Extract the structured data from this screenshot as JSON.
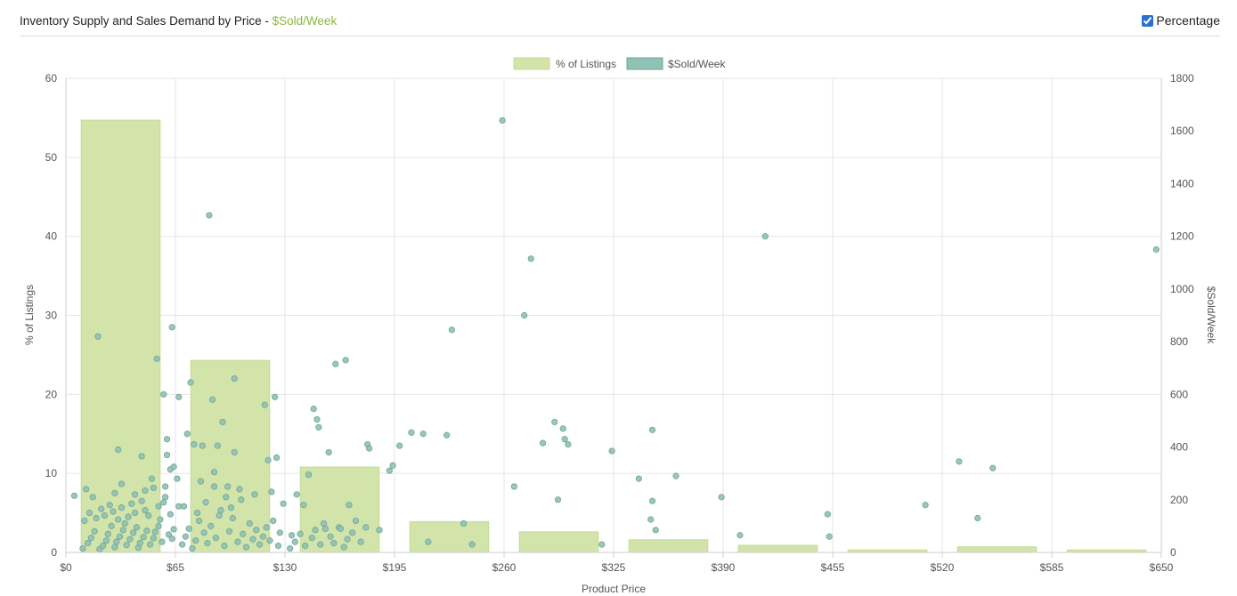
{
  "header": {
    "title": "Inventory Supply and Sales Demand by Price - ",
    "title_accent": "$Sold/Week",
    "toggle_label": "Percentage",
    "toggle_checked": true
  },
  "colors": {
    "bar_fill": "#d2e4aa",
    "bar_stroke": "#c4db92",
    "point_fill": "#8fc1b5",
    "point_stroke": "#6fa496",
    "accent": "#8cb83c"
  },
  "chart_data": {
    "type": "bar+scatter",
    "xlabel": "Product Price",
    "ylabel_left": "% of Listings",
    "ylabel_right": "$Sold/Week",
    "xlim": [
      0,
      650
    ],
    "ylim_left": [
      0,
      60
    ],
    "ylim_right": [
      0,
      1800
    ],
    "x_ticks": [
      "$0",
      "$65",
      "$130",
      "$195",
      "$260",
      "$325",
      "$390",
      "$455",
      "$520",
      "$585",
      "$650"
    ],
    "y_ticks_left": [
      "0",
      "10",
      "20",
      "30",
      "40",
      "50",
      "60"
    ],
    "y_ticks_right": [
      "0",
      "200",
      "400",
      "600",
      "800",
      "1000",
      "1200",
      "1400",
      "1600",
      "1800"
    ],
    "grid": true,
    "legend": {
      "placement": "top-center",
      "entries": [
        "% of Listings",
        "$Sold/Week"
      ]
    },
    "bars": {
      "name": "% of Listings",
      "bins": [
        [
          0,
          65
        ],
        [
          65,
          130
        ],
        [
          130,
          195
        ],
        [
          195,
          260
        ],
        [
          260,
          325
        ],
        [
          325,
          390
        ],
        [
          390,
          455
        ],
        [
          455,
          520
        ],
        [
          520,
          585
        ],
        [
          585,
          650
        ]
      ],
      "values": [
        54.7,
        24.3,
        10.8,
        3.9,
        2.6,
        1.6,
        0.9,
        0.3,
        0.7,
        0.3
      ]
    },
    "scatter": {
      "name": "$Sold/Week",
      "points": [
        [
          5,
          215
        ],
        [
          19,
          820
        ],
        [
          31,
          390
        ],
        [
          45,
          365
        ],
        [
          51,
          280
        ],
        [
          54,
          735
        ],
        [
          58,
          600
        ],
        [
          59,
          250
        ],
        [
          60,
          370
        ],
        [
          63,
          855
        ],
        [
          60,
          430
        ],
        [
          62,
          315
        ],
        [
          67,
          590
        ],
        [
          64,
          325
        ],
        [
          59,
          210
        ],
        [
          74,
          645
        ],
        [
          81,
          405
        ],
        [
          85,
          1280
        ],
        [
          87,
          580
        ],
        [
          88,
          250
        ],
        [
          90,
          405
        ],
        [
          93,
          495
        ],
        [
          96,
          250
        ],
        [
          100,
          660
        ],
        [
          104,
          200
        ],
        [
          72,
          450
        ],
        [
          76,
          410
        ],
        [
          67,
          175
        ],
        [
          118,
          560
        ],
        [
          120,
          350
        ],
        [
          124,
          590
        ],
        [
          125,
          360
        ],
        [
          129,
          185
        ],
        [
          134,
          65
        ],
        [
          137,
          220
        ],
        [
          141,
          180
        ],
        [
          144,
          295
        ],
        [
          147,
          545
        ],
        [
          149,
          505
        ],
        [
          150,
          475
        ],
        [
          154,
          90
        ],
        [
          156,
          380
        ],
        [
          160,
          715
        ],
        [
          162,
          95
        ],
        [
          166,
          730
        ],
        [
          168,
          180
        ],
        [
          178,
          95
        ],
        [
          179,
          410
        ],
        [
          180,
          395
        ],
        [
          186,
          85
        ],
        [
          192,
          310
        ],
        [
          194,
          330
        ],
        [
          198,
          405
        ],
        [
          205,
          455
        ],
        [
          212,
          450
        ],
        [
          215,
          40
        ],
        [
          226,
          445
        ],
        [
          229,
          845
        ],
        [
          236,
          110
        ],
        [
          241,
          30
        ],
        [
          259,
          1640
        ],
        [
          266,
          250
        ],
        [
          272,
          900
        ],
        [
          276,
          1115
        ],
        [
          283,
          415
        ],
        [
          290,
          495
        ],
        [
          292,
          200
        ],
        [
          295,
          470
        ],
        [
          296,
          430
        ],
        [
          298,
          410
        ],
        [
          318,
          30
        ],
        [
          324,
          385
        ],
        [
          340,
          280
        ],
        [
          347,
          125
        ],
        [
          348,
          465
        ],
        [
          348,
          195
        ],
        [
          350,
          85
        ],
        [
          362,
          290
        ],
        [
          389,
          210
        ],
        [
          400,
          65
        ],
        [
          415,
          1200
        ],
        [
          452,
          145
        ],
        [
          453,
          60
        ],
        [
          510,
          180
        ],
        [
          530,
          345
        ],
        [
          541,
          130
        ],
        [
          550,
          320
        ],
        [
          647,
          1150
        ],
        [
          10,
          15
        ],
        [
          13,
          35
        ],
        [
          15,
          55
        ],
        [
          17,
          80
        ],
        [
          20,
          12
        ],
        [
          22,
          25
        ],
        [
          24,
          45
        ],
        [
          25,
          70
        ],
        [
          27,
          100
        ],
        [
          29,
          20
        ],
        [
          30,
          40
        ],
        [
          32,
          60
        ],
        [
          34,
          85
        ],
        [
          35,
          110
        ],
        [
          36,
          28
        ],
        [
          38,
          50
        ],
        [
          40,
          75
        ],
        [
          42,
          95
        ],
        [
          43,
          18
        ],
        [
          44,
          36
        ],
        [
          46,
          58
        ],
        [
          48,
          82
        ],
        [
          50,
          30
        ],
        [
          52,
          54
        ],
        [
          53,
          78
        ],
        [
          55,
          100
        ],
        [
          56,
          125
        ],
        [
          57,
          40
        ],
        [
          61,
          68
        ],
        [
          62,
          145
        ],
        [
          63,
          52
        ],
        [
          64,
          88
        ],
        [
          11,
          120
        ],
        [
          14,
          150
        ],
        [
          18,
          130
        ],
        [
          21,
          165
        ],
        [
          23,
          140
        ],
        [
          26,
          180
        ],
        [
          28,
          155
        ],
        [
          31,
          125
        ],
        [
          33,
          170
        ],
        [
          37,
          135
        ],
        [
          39,
          185
        ],
        [
          41,
          150
        ],
        [
          45,
          195
        ],
        [
          47,
          160
        ],
        [
          49,
          140
        ],
        [
          55,
          175
        ],
        [
          69,
          30
        ],
        [
          71,
          60
        ],
        [
          73,
          90
        ],
        [
          75,
          15
        ],
        [
          77,
          45
        ],
        [
          79,
          120
        ],
        [
          82,
          75
        ],
        [
          84,
          35
        ],
        [
          86,
          100
        ],
        [
          89,
          55
        ],
        [
          91,
          140
        ],
        [
          94,
          25
        ],
        [
          97,
          80
        ],
        [
          99,
          130
        ],
        [
          102,
          40
        ],
        [
          105,
          70
        ],
        [
          107,
          20
        ],
        [
          109,
          110
        ],
        [
          111,
          50
        ],
        [
          113,
          85
        ],
        [
          115,
          30
        ],
        [
          117,
          60
        ],
        [
          119,
          95
        ],
        [
          121,
          45
        ],
        [
          123,
          120
        ],
        [
          126,
          25
        ],
        [
          127,
          75
        ],
        [
          70,
          175
        ],
        [
          78,
          150
        ],
        [
          83,
          190
        ],
        [
          92,
          160
        ],
        [
          98,
          170
        ],
        [
          133,
          15
        ],
        [
          136,
          40
        ],
        [
          139,
          70
        ],
        [
          142,
          25
        ],
        [
          146,
          55
        ],
        [
          148,
          85
        ],
        [
          151,
          30
        ],
        [
          153,
          110
        ],
        [
          157,
          60
        ],
        [
          159,
          35
        ],
        [
          163,
          90
        ],
        [
          165,
          20
        ],
        [
          167,
          50
        ],
        [
          170,
          75
        ],
        [
          172,
          120
        ],
        [
          175,
          40
        ],
        [
          12,
          240
        ],
        [
          16,
          210
        ],
        [
          29,
          225
        ],
        [
          33,
          260
        ],
        [
          41,
          220
        ],
        [
          47,
          235
        ],
        [
          52,
          245
        ],
        [
          58,
          190
        ],
        [
          66,
          280
        ],
        [
          80,
          270
        ],
        [
          88,
          305
        ],
        [
          95,
          210
        ],
        [
          103,
          240
        ],
        [
          112,
          220
        ],
        [
          122,
          230
        ],
        [
          100,
          380
        ]
      ]
    }
  }
}
